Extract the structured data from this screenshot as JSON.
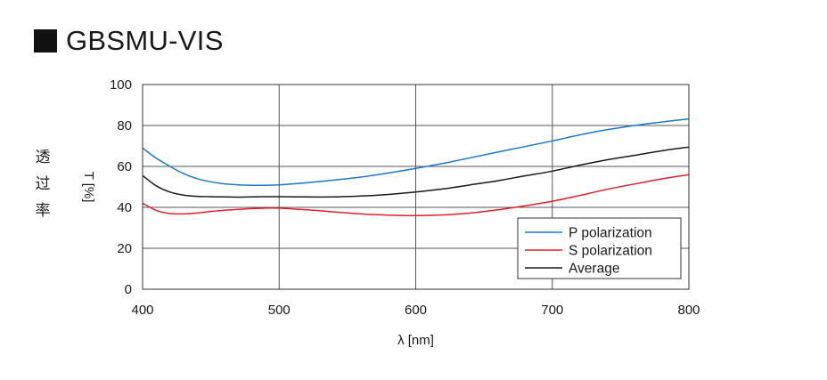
{
  "page": {
    "title": "GBSMU-VIS",
    "side_label_chars": [
      "透",
      "过",
      "率"
    ]
  },
  "chart_data": {
    "type": "line",
    "title": "GBSMU-VIS",
    "xlabel": "λ [nm]",
    "ylabel": "T [%]",
    "xlim": [
      400,
      800
    ],
    "ylim": [
      0,
      100
    ],
    "x_ticks": [
      400,
      500,
      600,
      700,
      800
    ],
    "y_ticks": [
      0,
      20,
      40,
      60,
      80,
      100
    ],
    "grid": true,
    "legend_position": "bottom-right",
    "series": [
      {
        "name": "P polarization",
        "color": "#1f77c8",
        "x": [
          400,
          410,
          420,
          430,
          440,
          450,
          460,
          470,
          480,
          490,
          500,
          520,
          540,
          560,
          580,
          600,
          620,
          640,
          660,
          680,
          700,
          720,
          740,
          760,
          780,
          800
        ],
        "y": [
          69,
          64,
          60,
          56.5,
          54,
          52.5,
          51.5,
          51,
          50.8,
          50.8,
          51,
          52,
          53.3,
          54.8,
          56.8,
          59,
          61.5,
          64.2,
          67,
          69.7,
          72.5,
          75.4,
          77.9,
          80,
          81.7,
          83.2
        ]
      },
      {
        "name": "S polarization",
        "color": "#e0202a",
        "x": [
          400,
          410,
          420,
          430,
          440,
          450,
          460,
          470,
          480,
          490,
          500,
          520,
          540,
          560,
          580,
          600,
          620,
          640,
          660,
          680,
          700,
          720,
          740,
          760,
          780,
          800
        ],
        "y": [
          42,
          38.5,
          37,
          36.8,
          37.2,
          38,
          38.6,
          39,
          39.4,
          39.6,
          39.6,
          38.8,
          37.8,
          36.8,
          36.2,
          36,
          36.3,
          37.2,
          38.8,
          40.8,
          43,
          45.8,
          48.8,
          51.4,
          53.9,
          56
        ]
      },
      {
        "name": "Average",
        "color": "#1a1a1a",
        "x": [
          400,
          410,
          420,
          430,
          440,
          450,
          460,
          470,
          480,
          490,
          500,
          520,
          540,
          560,
          580,
          600,
          620,
          640,
          660,
          680,
          700,
          720,
          740,
          760,
          780,
          800
        ],
        "y": [
          55.5,
          50.5,
          47.5,
          46,
          45.4,
          45.2,
          45.1,
          45,
          45.1,
          45.2,
          45.2,
          45.1,
          45.1,
          45.5,
          46.3,
          47.5,
          49,
          51,
          53,
          55.4,
          57.7,
          60.6,
          63.2,
          65.4,
          67.6,
          69.5
        ]
      }
    ]
  }
}
